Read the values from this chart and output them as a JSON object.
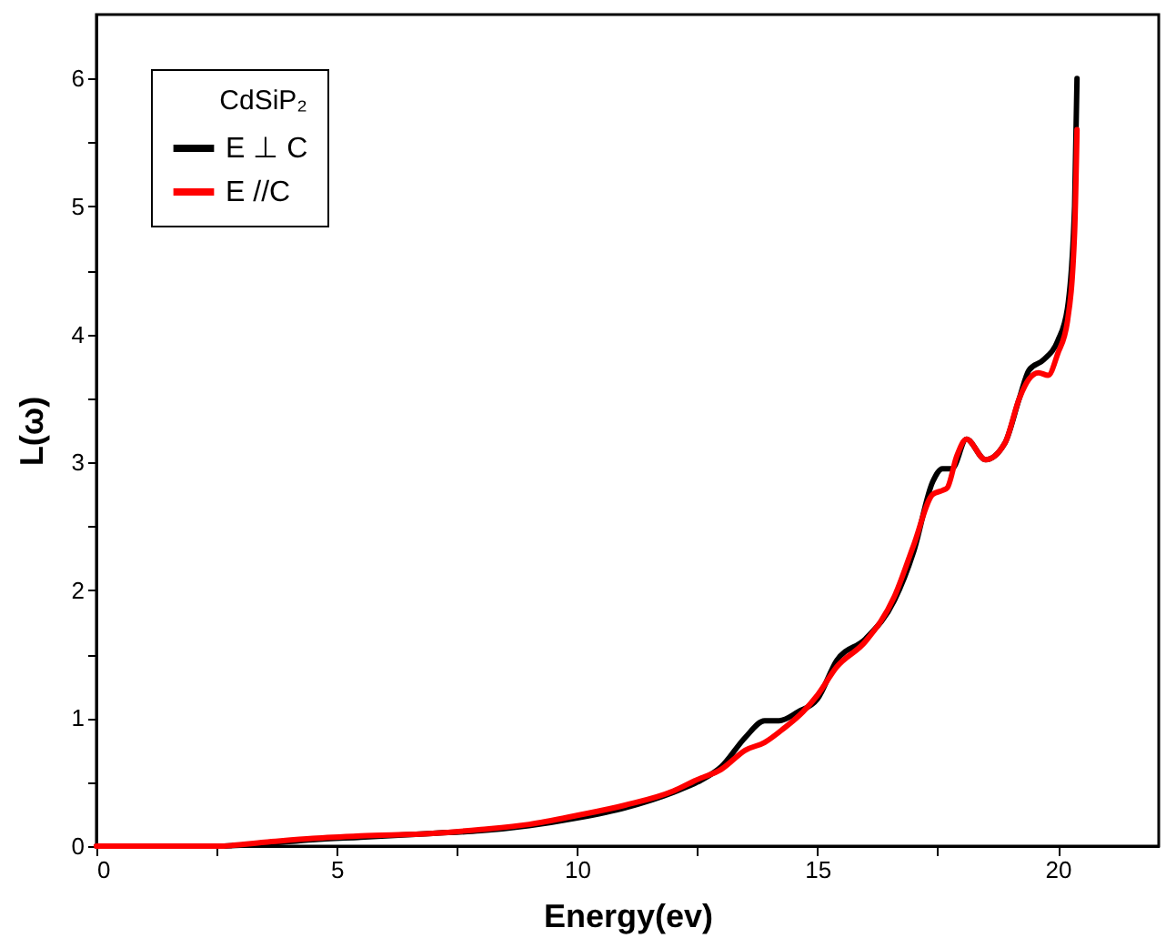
{
  "chart_data": {
    "type": "line",
    "xlabel": "Energy(ev)",
    "ylabel": "L(ω)",
    "legend_title": "CdSiP₂",
    "xlim": [
      0,
      22.1
    ],
    "ylim": [
      0,
      6.5
    ],
    "xticks": [
      0,
      {
        "value": 2.5,
        "label": null
      },
      5,
      {
        "value": 7.5,
        "label": null
      },
      10,
      {
        "value": 12.5,
        "label": null
      },
      15,
      {
        "value": 17.5,
        "label": null
      },
      20
    ],
    "yticks": [
      0,
      {
        "value": 0.5,
        "label": null
      },
      1,
      {
        "value": 1.5,
        "label": null
      },
      2,
      {
        "value": 2.5,
        "label": null
      },
      3,
      {
        "value": 3.5,
        "label": null
      },
      4,
      {
        "value": 4.5,
        "label": null
      },
      5,
      {
        "value": 5.5,
        "label": null
      },
      6
    ],
    "grid": false,
    "legend": "top left",
    "marker": "none",
    "line_style": "solid",
    "series": [
      {
        "name": "E ⊥ C",
        "color": "#000000",
        "x": [
          0,
          2.5,
          3.5,
          4.5,
          5.5,
          7,
          8,
          9,
          10,
          11,
          12,
          12.5,
          13,
          13.5,
          13.9,
          14.2,
          14.6,
          15,
          15.4,
          16,
          16.6,
          17,
          17.4,
          17.6,
          17.8,
          18.1,
          18.5,
          18.9,
          19.2,
          19.4,
          19.7,
          20,
          20.2,
          20.35,
          20.4
        ],
        "values": [
          0,
          0,
          0.02,
          0.05,
          0.07,
          0.1,
          0.12,
          0.16,
          0.22,
          0.3,
          0.42,
          0.5,
          0.62,
          0.85,
          0.98,
          0.98,
          1.05,
          1.15,
          1.45,
          1.62,
          1.92,
          2.3,
          2.85,
          2.95,
          2.95,
          3.18,
          3.02,
          3.15,
          3.5,
          3.72,
          3.8,
          3.95,
          4.2,
          5,
          6
        ]
      },
      {
        "name": "E //C",
        "color": "#ff0000",
        "x": [
          0,
          2.5,
          3.5,
          4.5,
          5.5,
          7,
          8,
          9,
          10,
          11,
          12,
          12.5,
          13,
          13.5,
          13.9,
          14.3,
          14.7,
          15,
          15.4,
          16,
          16.6,
          17,
          17.4,
          17.6,
          17.7,
          17.9,
          18.1,
          18.5,
          18.9,
          19.2,
          19.4,
          19.6,
          19.8,
          20,
          20.2,
          20.35,
          20.4
        ],
        "values": [
          0,
          0,
          0.03,
          0.06,
          0.08,
          0.1,
          0.13,
          0.17,
          0.24,
          0.32,
          0.43,
          0.52,
          0.6,
          0.75,
          0.81,
          0.92,
          1.05,
          1.18,
          1.4,
          1.6,
          1.95,
          2.35,
          2.75,
          2.78,
          2.8,
          3.05,
          3.18,
          3.02,
          3.15,
          3.5,
          3.65,
          3.7,
          3.68,
          3.85,
          4.1,
          4.8,
          5.6
        ]
      }
    ]
  }
}
